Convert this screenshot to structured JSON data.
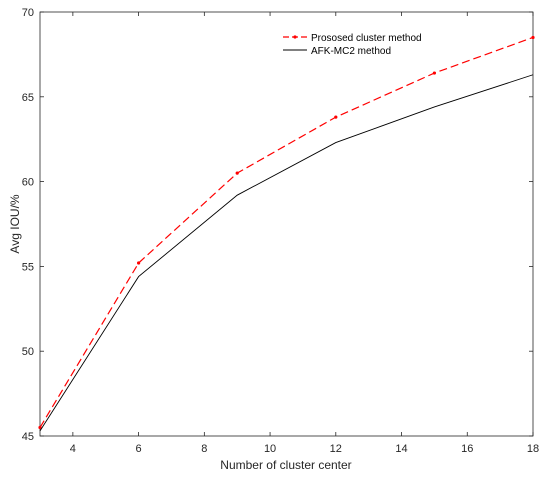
{
  "chart_data": {
    "type": "line",
    "title": "",
    "xlabel": "Number of cluster center",
    "ylabel": "Avg IOU/%",
    "xlim": [
      3,
      18
    ],
    "ylim": [
      45,
      70
    ],
    "xticks": [
      4,
      6,
      8,
      10,
      12,
      14,
      16,
      18
    ],
    "yticks": [
      45,
      50,
      55,
      60,
      65,
      70
    ],
    "grid": false,
    "legend_position": "top-right",
    "series": [
      {
        "name": "Prososed cluster method",
        "x": [
          3,
          6,
          9,
          12,
          15,
          18
        ],
        "values": [
          45.5,
          55.2,
          60.5,
          63.8,
          66.4,
          68.5
        ],
        "color": "#ff0000",
        "line_style": "dashed",
        "marker": "point"
      },
      {
        "name": "AFK-MC2 method",
        "x": [
          3,
          6,
          9,
          12,
          15,
          18
        ],
        "values": [
          45.3,
          54.4,
          59.2,
          62.3,
          64.4,
          66.3
        ],
        "color": "#000000",
        "line_style": "solid",
        "marker": "none"
      }
    ]
  }
}
